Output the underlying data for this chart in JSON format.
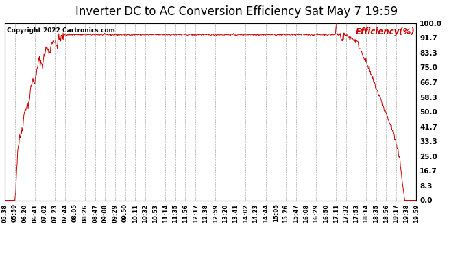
{
  "title": "Inverter DC to AC Conversion Efficiency Sat May 7 19:59",
  "copyright_text": "Copyright 2022 Cartronics.com",
  "legend_label": "Efficiency(%)",
  "line_color": "#cc0000",
  "legend_color": "#cc0000",
  "background_color": "#ffffff",
  "grid_color": "#999999",
  "title_fontsize": 12,
  "ylim": [
    0.0,
    100.0
  ],
  "yticks": [
    0.0,
    8.3,
    16.7,
    25.0,
    33.3,
    41.7,
    50.0,
    58.3,
    66.7,
    75.0,
    83.3,
    91.7,
    100.0
  ],
  "x_tick_labels": [
    "05:38",
    "05:59",
    "06:20",
    "06:41",
    "07:02",
    "07:23",
    "07:44",
    "08:05",
    "08:26",
    "08:47",
    "09:08",
    "09:29",
    "09:50",
    "10:11",
    "10:32",
    "10:53",
    "11:14",
    "11:35",
    "11:56",
    "12:17",
    "12:38",
    "12:59",
    "13:20",
    "13:41",
    "14:02",
    "14:23",
    "14:44",
    "15:05",
    "15:26",
    "15:47",
    "16:08",
    "16:29",
    "16:50",
    "17:11",
    "17:32",
    "17:53",
    "18:14",
    "18:35",
    "18:56",
    "19:17",
    "19:38",
    "19:59"
  ],
  "figsize": [
    6.9,
    3.75
  ],
  "dpi": 100
}
